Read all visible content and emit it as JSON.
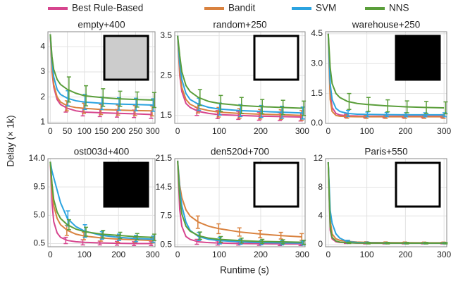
{
  "legend": {
    "names": [
      "Best Rule-Based",
      "Bandit",
      "SVM",
      "NNS"
    ],
    "colors": [
      "#d6458e",
      "#d9823f",
      "#2ba3e0",
      "#5a9e3a"
    ]
  },
  "xlabel": "Runtime (s)",
  "ylabel": "Delay (× 1k)",
  "chart_data": [
    {
      "type": "line",
      "title": "empty+400",
      "x": [
        0,
        5,
        10,
        20,
        30,
        50,
        75,
        100,
        150,
        200,
        250,
        300
      ],
      "xlim": [
        -7,
        307
      ],
      "xticks": [
        0,
        50,
        100,
        150,
        200,
        250,
        300
      ],
      "ylim": [
        0.95,
        4.6
      ],
      "yticks": [
        1,
        2,
        3,
        4
      ],
      "grid": true,
      "series": [
        {
          "values": [
            4.5,
            3.0,
            2.4,
            1.9,
            1.7,
            1.55,
            1.45,
            1.4,
            1.37,
            1.35,
            1.33,
            1.3
          ],
          "errors": [
            null,
            null,
            null,
            null,
            null,
            0.15,
            null,
            0.15,
            0.15,
            0.15,
            0.15,
            0.15
          ]
        },
        {
          "values": [
            4.5,
            3.1,
            2.5,
            2.0,
            1.8,
            1.65,
            1.58,
            1.55,
            1.5,
            1.48,
            1.46,
            1.45
          ],
          "errors": [
            null,
            null,
            null,
            null,
            null,
            0.2,
            null,
            0.2,
            0.2,
            0.2,
            0.2,
            0.2
          ]
        },
        {
          "values": [
            4.5,
            3.4,
            2.8,
            2.3,
            2.1,
            1.95,
            1.85,
            1.8,
            1.75,
            1.72,
            1.7,
            1.68
          ],
          "errors": [
            null,
            null,
            null,
            null,
            null,
            0.3,
            null,
            0.3,
            0.25,
            0.25,
            0.25,
            0.25
          ]
        },
        {
          "values": [
            4.5,
            3.6,
            3.1,
            2.7,
            2.5,
            2.3,
            2.15,
            2.05,
            1.98,
            1.93,
            1.9,
            1.88
          ],
          "errors": [
            null,
            null,
            null,
            null,
            null,
            0.5,
            null,
            0.4,
            0.35,
            0.3,
            0.3,
            0.3
          ]
        }
      ]
    },
    {
      "type": "line",
      "title": "random+250",
      "x": [
        0,
        5,
        10,
        20,
        30,
        50,
        75,
        100,
        150,
        200,
        250,
        300
      ],
      "xlim": [
        -7,
        307
      ],
      "xticks": [
        0,
        100,
        200,
        300
      ],
      "ylim": [
        1.3,
        3.6
      ],
      "yticks": [
        1.5,
        2.5,
        3.5
      ],
      "grid": true,
      "series": [
        {
          "values": [
            3.5,
            2.5,
            2.1,
            1.8,
            1.7,
            1.6,
            1.55,
            1.52,
            1.5,
            1.48,
            1.47,
            1.46
          ],
          "errors": [
            null,
            null,
            null,
            null,
            null,
            0.1,
            null,
            0.1,
            0.1,
            0.1,
            0.1,
            0.1
          ]
        },
        {
          "values": [
            3.5,
            2.6,
            2.2,
            1.9,
            1.78,
            1.68,
            1.62,
            1.58,
            1.55,
            1.53,
            1.52,
            1.5
          ],
          "errors": [
            null,
            null,
            null,
            null,
            null,
            0.12,
            null,
            0.12,
            0.12,
            0.12,
            0.12,
            0.12
          ]
        },
        {
          "values": [
            3.5,
            2.8,
            2.4,
            2.05,
            1.9,
            1.78,
            1.7,
            1.66,
            1.62,
            1.6,
            1.58,
            1.56
          ],
          "errors": [
            null,
            null,
            null,
            null,
            null,
            0.15,
            null,
            0.15,
            0.15,
            0.15,
            0.15,
            0.15
          ]
        },
        {
          "values": [
            3.5,
            3.0,
            2.6,
            2.25,
            2.1,
            1.95,
            1.85,
            1.8,
            1.75,
            1.72,
            1.7,
            1.68
          ],
          "errors": [
            null,
            null,
            null,
            null,
            null,
            0.2,
            null,
            0.2,
            0.2,
            0.18,
            0.18,
            0.18
          ]
        }
      ]
    },
    {
      "type": "line",
      "title": "warehouse+250",
      "x": [
        0,
        5,
        10,
        20,
        30,
        50,
        75,
        100,
        150,
        200,
        250,
        300
      ],
      "xlim": [
        -7,
        307
      ],
      "xticks": [
        0,
        100,
        200,
        300
      ],
      "ylim": [
        0,
        4.6
      ],
      "yticks": [
        {
          "value": 0,
          "label": "0.0"
        },
        1.5,
        {
          "value": 3,
          "label": "3.0"
        },
        4.5
      ],
      "grid": true,
      "series": [
        {
          "values": [
            4.5,
            1.5,
            0.8,
            0.5,
            0.42,
            0.38,
            0.37,
            0.36,
            0.36,
            0.36,
            0.36,
            0.36
          ],
          "errors": [
            null,
            null,
            null,
            null,
            null,
            0.08,
            null,
            0.08,
            0.08,
            0.08,
            0.08,
            0.08
          ]
        },
        {
          "values": [
            4.5,
            1.2,
            0.6,
            0.4,
            0.36,
            0.34,
            0.33,
            0.33,
            0.33,
            0.33,
            0.33,
            0.33
          ],
          "errors": [
            null,
            null,
            null,
            null,
            null,
            0.08,
            null,
            0.08,
            0.08,
            0.08,
            0.08,
            0.08
          ]
        },
        {
          "values": [
            4.5,
            2.0,
            1.2,
            0.75,
            0.6,
            0.5,
            0.46,
            0.45,
            0.44,
            0.43,
            0.43,
            0.43
          ],
          "errors": [
            null,
            null,
            null,
            null,
            null,
            0.15,
            null,
            0.12,
            0.1,
            0.1,
            0.1,
            0.1
          ]
        },
        {
          "values": [
            4.5,
            2.8,
            2.0,
            1.5,
            1.3,
            1.1,
            1.0,
            0.95,
            0.88,
            0.83,
            0.8,
            0.78
          ],
          "errors": [
            null,
            null,
            null,
            null,
            null,
            0.4,
            null,
            0.35,
            0.3,
            0.3,
            0.3,
            0.3
          ]
        }
      ]
    },
    {
      "type": "line",
      "title": "ost003d+400",
      "x": [
        0,
        5,
        10,
        20,
        30,
        50,
        75,
        100,
        150,
        200,
        250,
        300
      ],
      "xlim": [
        -7,
        307
      ],
      "xticks": [
        0,
        100,
        200,
        300
      ],
      "ylim": [
        0,
        14
      ],
      "yticks": [
        0.5,
        {
          "value": 5,
          "label": "5.0"
        },
        9.5,
        {
          "value": 14,
          "label": "14.0"
        }
      ],
      "grid": true,
      "series": [
        {
          "values": [
            13.5,
            7,
            4,
            2.2,
            1.5,
            1.0,
            0.8,
            0.7,
            0.6,
            0.55,
            0.5,
            0.5
          ],
          "errors": [
            null,
            null,
            null,
            null,
            null,
            0.5,
            null,
            0.4,
            0.3,
            0.3,
            0.3,
            0.3
          ]
        },
        {
          "values": [
            13.5,
            9,
            6.5,
            4.5,
            3.5,
            2.6,
            2.0,
            1.7,
            1.4,
            1.2,
            1.1,
            1.0
          ],
          "errors": [
            null,
            null,
            null,
            null,
            null,
            0.8,
            null,
            0.6,
            0.5,
            0.5,
            0.4,
            0.4
          ]
        },
        {
          "values": [
            13.5,
            12,
            11,
            9,
            7,
            4.5,
            3.2,
            2.5,
            1.8,
            1.5,
            1.3,
            1.2
          ],
          "errors": [
            null,
            null,
            null,
            null,
            null,
            1.2,
            null,
            1.0,
            0.6,
            0.5,
            0.5,
            0.5
          ]
        },
        {
          "values": [
            13.5,
            10,
            7.5,
            5.5,
            4.5,
            3.5,
            2.8,
            2.4,
            2.0,
            1.8,
            1.6,
            1.5
          ],
          "errors": [
            null,
            null,
            null,
            null,
            null,
            0.8,
            null,
            0.7,
            0.6,
            0.5,
            0.5,
            0.5
          ]
        }
      ]
    },
    {
      "type": "line",
      "title": "den520d+700",
      "x": [
        0,
        5,
        10,
        20,
        30,
        50,
        75,
        100,
        150,
        200,
        250,
        300
      ],
      "xlim": [
        -7,
        307
      ],
      "xticks": [
        0,
        100,
        200,
        300
      ],
      "ylim": [
        0,
        21.5
      ],
      "yticks": [
        0.5,
        7.5,
        14.5,
        21.5
      ],
      "grid": true,
      "series": [
        {
          "values": [
            21,
            9,
            5,
            2.5,
            1.8,
            1.2,
            1.0,
            0.9,
            0.8,
            0.75,
            0.7,
            0.7
          ],
          "errors": [
            null,
            null,
            null,
            null,
            null,
            0.6,
            null,
            0.5,
            0.4,
            0.4,
            0.4,
            0.4
          ]
        },
        {
          "values": [
            21,
            15,
            12,
            9,
            7.5,
            6,
            5,
            4.4,
            3.6,
            3.1,
            2.7,
            2.4
          ],
          "errors": [
            null,
            null,
            null,
            null,
            null,
            1.5,
            null,
            1.2,
            1.0,
            0.9,
            0.8,
            0.8
          ]
        },
        {
          "values": [
            21,
            14,
            10,
            6,
            4,
            2.5,
            1.8,
            1.5,
            1.2,
            1.0,
            0.95,
            0.9
          ],
          "errors": [
            null,
            null,
            null,
            null,
            null,
            1.0,
            null,
            0.8,
            0.6,
            0.5,
            0.5,
            0.5
          ]
        },
        {
          "values": [
            21,
            12,
            8,
            5,
            3.8,
            2.7,
            2.1,
            1.8,
            1.5,
            1.3,
            1.2,
            1.1
          ],
          "errors": [
            null,
            null,
            null,
            null,
            null,
            0.9,
            null,
            0.7,
            0.6,
            0.5,
            0.5,
            0.5
          ]
        }
      ]
    },
    {
      "type": "line",
      "title": "Paris+550",
      "x": [
        0,
        5,
        10,
        20,
        30,
        50,
        75,
        100,
        150,
        200,
        250,
        300
      ],
      "xlim": [
        -7,
        307
      ],
      "xticks": [
        0,
        100,
        200,
        300
      ],
      "ylim": [
        -0.3,
        12
      ],
      "yticks": [
        0,
        4,
        8,
        12
      ],
      "grid": true,
      "series": [
        {
          "values": [
            11.5,
            2,
            0.8,
            0.4,
            0.3,
            0.25,
            0.2,
            0.2,
            0.2,
            0.2,
            0.2,
            0.2
          ],
          "errors": [
            null,
            null,
            null,
            null,
            null,
            0.1,
            null,
            0.1,
            0.1,
            0.1,
            0.1,
            0.1
          ]
        },
        {
          "values": [
            11.5,
            3.5,
            1.5,
            0.8,
            0.6,
            0.45,
            0.35,
            0.3,
            0.28,
            0.26,
            0.25,
            0.25
          ],
          "errors": [
            null,
            null,
            null,
            null,
            null,
            0.15,
            null,
            0.1,
            0.1,
            0.1,
            0.1,
            0.1
          ]
        },
        {
          "values": [
            11.5,
            4.8,
            3,
            1.5,
            0.9,
            0.4,
            0.3,
            0.25,
            0.22,
            0.2,
            0.2,
            0.2
          ],
          "errors": [
            null,
            null,
            null,
            null,
            null,
            0.2,
            null,
            0.1,
            0.1,
            0.1,
            0.1,
            0.1
          ]
        },
        {
          "values": [
            11.5,
            2.5,
            1.0,
            0.5,
            0.35,
            0.25,
            0.22,
            0.2,
            0.2,
            0.2,
            0.2,
            0.2
          ],
          "errors": [
            null,
            null,
            null,
            null,
            null,
            0.1,
            null,
            0.1,
            0.1,
            0.1,
            0.1,
            0.1
          ]
        }
      ]
    }
  ]
}
